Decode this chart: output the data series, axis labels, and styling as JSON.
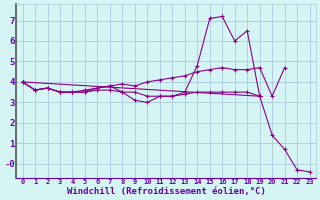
{
  "xlabel": "Windchill (Refroidissement éolien,°C)",
  "x": [
    0,
    1,
    2,
    3,
    4,
    5,
    6,
    7,
    8,
    9,
    10,
    11,
    12,
    13,
    14,
    15,
    16,
    17,
    18,
    19,
    20,
    21,
    22,
    23
  ],
  "line1": [
    4.0,
    3.6,
    3.7,
    3.5,
    3.5,
    3.5,
    3.7,
    3.8,
    3.9,
    3.8,
    4.0,
    4.1,
    4.2,
    4.3,
    4.5,
    4.6,
    4.7,
    4.6,
    4.6,
    4.7,
    3.3,
    4.7,
    null,
    null
  ],
  "line2": [
    4.0,
    3.6,
    3.7,
    3.5,
    3.5,
    3.6,
    3.7,
    3.8,
    3.5,
    3.1,
    3.0,
    3.3,
    3.3,
    3.5,
    4.8,
    7.1,
    7.2,
    6.0,
    6.5,
    3.3,
    null,
    null,
    null,
    null
  ],
  "line3": [
    4.0,
    null,
    null,
    null,
    null,
    null,
    null,
    null,
    null,
    null,
    null,
    null,
    null,
    null,
    null,
    null,
    null,
    null,
    null,
    3.3,
    1.4,
    0.7,
    -0.3,
    -0.4
  ],
  "line4": [
    4.0,
    3.6,
    3.7,
    3.5,
    3.5,
    3.5,
    3.6,
    3.6,
    3.5,
    3.5,
    3.3,
    3.3,
    3.3,
    3.4,
    3.5,
    3.5,
    3.5,
    3.5,
    3.5,
    3.3,
    null,
    null,
    null,
    null
  ],
  "bg_color": "#d5f5f5",
  "grid_color": "#aac8d8",
  "line_color": "#880088",
  "spine_color": "#6600aa",
  "ylim": [
    -0.7,
    7.8
  ],
  "xlim": [
    -0.5,
    23.5
  ],
  "yticks": [
    0,
    1,
    2,
    3,
    4,
    5,
    6,
    7
  ],
  "ytick_labels": [
    "-0",
    "1",
    "2",
    "3",
    "4",
    "5",
    "6",
    "7"
  ],
  "xtick_labels": [
    "0",
    "1",
    "2",
    "3",
    "4",
    "5",
    "6",
    "7",
    "8",
    "9",
    "10",
    "11",
    "12",
    "13",
    "14",
    "15",
    "16",
    "17",
    "18",
    "19",
    "20",
    "21",
    "22",
    "23"
  ]
}
